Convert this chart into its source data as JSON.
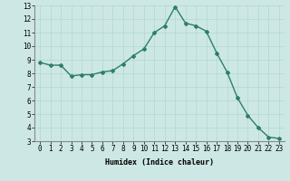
{
  "x": [
    0,
    1,
    2,
    3,
    4,
    5,
    6,
    7,
    8,
    9,
    10,
    11,
    12,
    13,
    14,
    15,
    16,
    17,
    18,
    19,
    20,
    21,
    22,
    23
  ],
  "y": [
    8.8,
    8.6,
    8.6,
    7.8,
    7.9,
    7.9,
    8.1,
    8.2,
    8.7,
    9.3,
    9.8,
    11.0,
    11.5,
    12.9,
    11.7,
    11.5,
    11.1,
    9.5,
    8.1,
    6.2,
    4.9,
    4.0,
    3.3,
    3.2
  ],
  "line_color": "#2e7d6e",
  "marker": "D",
  "marker_size": 2,
  "linewidth": 1.0,
  "xlabel": "Humidex (Indice chaleur)",
  "xlabel_fontsize": 6,
  "xlim": [
    -0.5,
    23.5
  ],
  "ylim": [
    3,
    13
  ],
  "yticks": [
    3,
    4,
    5,
    6,
    7,
    8,
    9,
    10,
    11,
    12,
    13
  ],
  "xticks": [
    0,
    1,
    2,
    3,
    4,
    5,
    6,
    7,
    8,
    9,
    10,
    11,
    12,
    13,
    14,
    15,
    16,
    17,
    18,
    19,
    20,
    21,
    22,
    23
  ],
  "bg_color": "#cde8e4",
  "grid_color": "#b0d8d0",
  "tick_fontsize": 5.5,
  "fig_width": 3.2,
  "fig_height": 2.0,
  "dpi": 100
}
